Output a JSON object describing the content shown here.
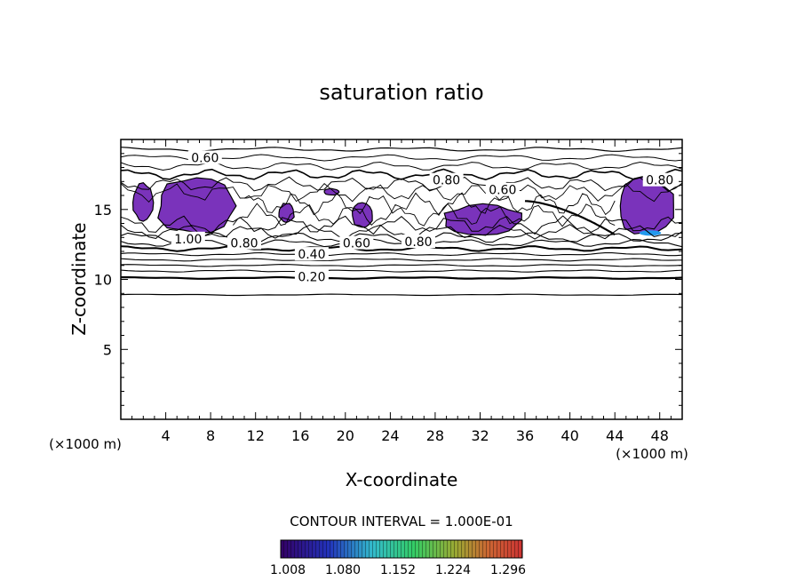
{
  "chart_data": {
    "type": "contour",
    "title": "saturation ratio",
    "xlabel": "X-coordinate",
    "ylabel": "Z-coordinate",
    "x_unit": "(×1000 m)",
    "z_unit": "(×1000 m)",
    "xlim": [
      0,
      50
    ],
    "ylim": [
      0,
      20
    ],
    "x_ticks": [
      4,
      8,
      12,
      16,
      20,
      24,
      28,
      32,
      36,
      40,
      44,
      48
    ],
    "y_ticks": [
      5,
      10,
      15
    ],
    "contour_interval_text": "CONTOUR INTERVAL = 1.000E-01",
    "contour_labels": [
      {
        "text": "0.60",
        "x": 7.5,
        "z": 18.7
      },
      {
        "text": "0.80",
        "x": 29.0,
        "z": 17.1
      },
      {
        "text": "0.60",
        "x": 34.0,
        "z": 16.4
      },
      {
        "text": "0.80",
        "x": 48.0,
        "z": 17.1
      },
      {
        "text": "1.00",
        "x": 6.0,
        "z": 12.9
      },
      {
        "text": "0.80",
        "x": 11.0,
        "z": 12.6
      },
      {
        "text": "0.60",
        "x": 21.0,
        "z": 12.6
      },
      {
        "text": "0.80",
        "x": 26.5,
        "z": 12.7
      },
      {
        "text": "0.40",
        "x": 17.0,
        "z": 11.8
      },
      {
        "text": "0.20",
        "x": 17.0,
        "z": 10.2
      }
    ],
    "supersaturated_regions": [
      {
        "x": [
          1.0,
          3.0
        ],
        "z": [
          14.0,
          17.0
        ]
      },
      {
        "x": [
          3.0,
          10.5
        ],
        "z": [
          13.0,
          17.5
        ]
      },
      {
        "x": [
          14.0,
          15.5
        ],
        "z": [
          14.0,
          15.5
        ]
      },
      {
        "x": [
          18.0,
          19.5
        ],
        "z": [
          16.0,
          16.5
        ]
      },
      {
        "x": [
          20.5,
          22.5
        ],
        "z": [
          13.6,
          15.5
        ]
      },
      {
        "x": [
          28.5,
          36.0
        ],
        "z": [
          13.0,
          15.5
        ]
      },
      {
        "x": [
          44.0,
          49.5
        ],
        "z": [
          13.0,
          17.5
        ]
      }
    ],
    "colorbar": {
      "min": 1.008,
      "max": 1.296,
      "tick_labels": [
        "1.008",
        "1.080",
        "1.152",
        "1.224",
        "1.296"
      ],
      "colors": [
        "#330066",
        "#3333cc",
        "#33cccc",
        "#33cc66",
        "#99cc33",
        "#cc6633",
        "#cc3333"
      ]
    }
  }
}
